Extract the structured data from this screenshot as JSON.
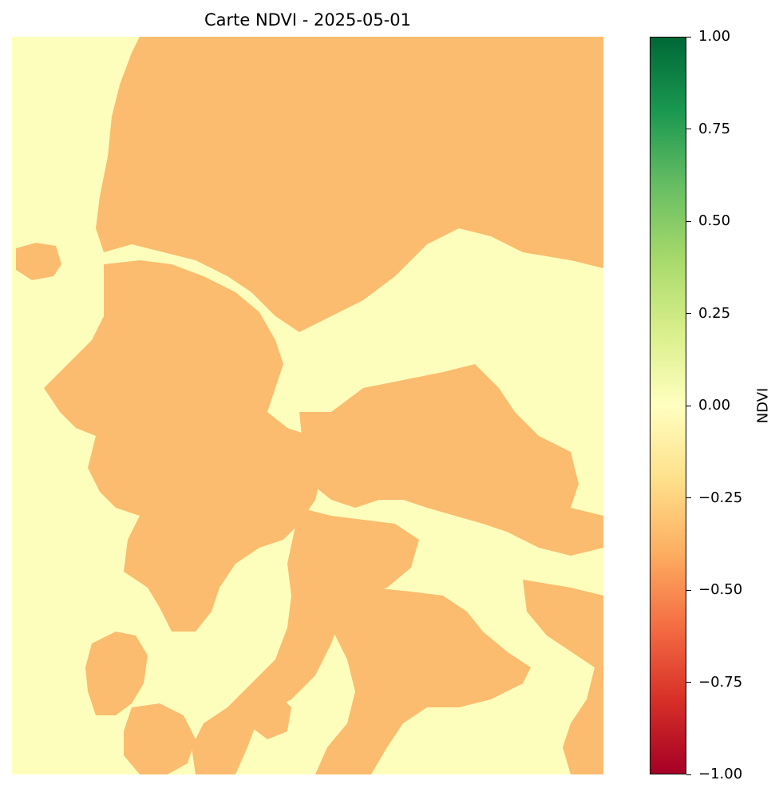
{
  "chart_data": {
    "type": "heatmap",
    "title": "Carte NDVI - 2025-05-01",
    "colorbar": {
      "label": "NDVI",
      "range": [
        -1.0,
        1.0
      ],
      "colormap": "RdYlGn",
      "tick_labels": [
        "1.00",
        "0.75",
        "0.50",
        "0.25",
        "0.00",
        "−0.25",
        "−0.50",
        "−0.75",
        "−1.00"
      ]
    },
    "axes_visible": false,
    "classes": [
      {
        "ndvi_approx": 0.0,
        "color": "#fdfebc"
      },
      {
        "ndvi_approx": -0.3,
        "color": "#fbbc6f"
      }
    ]
  }
}
